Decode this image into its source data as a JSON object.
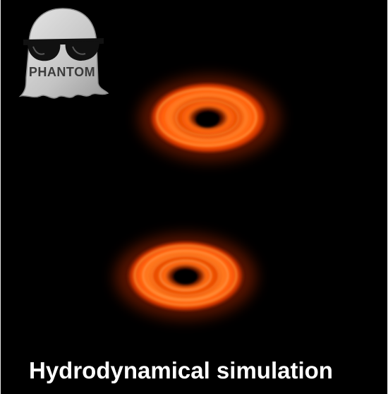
{
  "logo": {
    "label": "PHANTOM",
    "icon": "ghost-with-sunglasses-icon"
  },
  "caption": {
    "text": "Hydrodynamical simulation"
  },
  "colors": {
    "background": "#000000",
    "disk_outer": "#ff3a00",
    "disk_mid": "#ff6a10",
    "disk_bright": "#ffb060",
    "ghost_body": "#c9c9c9",
    "sunglasses": "#111111",
    "caption": "#ffffff"
  },
  "disks": [
    {
      "name": "upper-disk",
      "rings": 5
    },
    {
      "name": "lower-disk",
      "rings": 6
    }
  ]
}
